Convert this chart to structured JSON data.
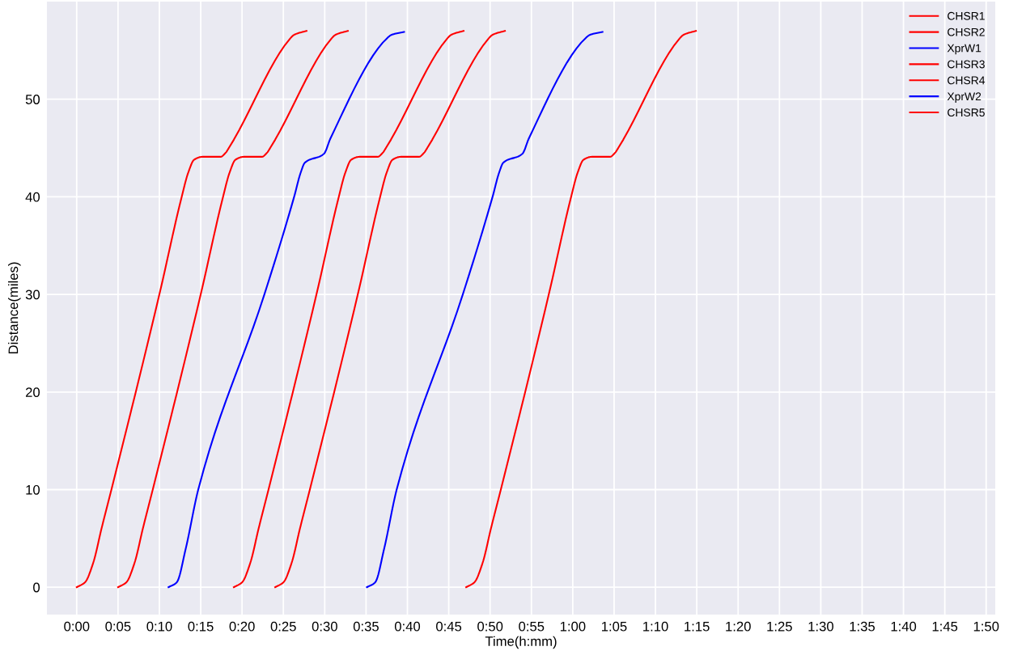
{
  "chart_data": {
    "type": "line",
    "xlabel": "Time(h:mm)",
    "ylabel": "Distance(miles)",
    "xlim": [
      -3.6,
      111.1
    ],
    "ylim": [
      -2.8,
      60
    ],
    "xticks": [
      {
        "value": 0,
        "label": "0:00"
      },
      {
        "value": 5,
        "label": "0:05"
      },
      {
        "value": 10,
        "label": "0:10"
      },
      {
        "value": 15,
        "label": "0:15"
      },
      {
        "value": 20,
        "label": "0:20"
      },
      {
        "value": 25,
        "label": "0:25"
      },
      {
        "value": 30,
        "label": "0:30"
      },
      {
        "value": 35,
        "label": "0:35"
      },
      {
        "value": 40,
        "label": "0:40"
      },
      {
        "value": 45,
        "label": "0:45"
      },
      {
        "value": 50,
        "label": "0:50"
      },
      {
        "value": 55,
        "label": "0:55"
      },
      {
        "value": 60,
        "label": "1:00"
      },
      {
        "value": 65,
        "label": "1:05"
      },
      {
        "value": 70,
        "label": "1:10"
      },
      {
        "value": 75,
        "label": "1:15"
      },
      {
        "value": 80,
        "label": "1:20"
      },
      {
        "value": 85,
        "label": "1:25"
      },
      {
        "value": 90,
        "label": "1:30"
      },
      {
        "value": 95,
        "label": "1:35"
      },
      {
        "value": 100,
        "label": "1:40"
      },
      {
        "value": 105,
        "label": "1:45"
      },
      {
        "value": 110,
        "label": "1:50"
      }
    ],
    "yticks": [
      0,
      10,
      20,
      30,
      40,
      50
    ],
    "grid": true,
    "legend": "top right",
    "marker": "none",
    "line_style": "solid",
    "series": [
      {
        "name": "CHSR1",
        "color": "#ff0000",
        "x": [
          0,
          1,
          2,
          3,
          4.2,
          10,
          12.7,
          13.5,
          14.2,
          15.2,
          17.4,
          18,
          18.4,
          25.8,
          26.3,
          27.8
        ],
        "values": [
          0,
          0.5,
          2.5,
          6,
          10,
          30,
          40,
          42.5,
          43.8,
          44.1,
          44.1,
          44.5,
          45,
          56.2,
          56.6,
          57
        ]
      },
      {
        "name": "CHSR2",
        "color": "#ff0000",
        "x": [
          5,
          6,
          7,
          8,
          9.2,
          15,
          17.7,
          18.5,
          19.2,
          20.2,
          22.4,
          23,
          23.4,
          30.8,
          31.3,
          32.8
        ],
        "values": [
          0,
          0.5,
          2.5,
          6,
          10,
          30,
          40,
          42.5,
          43.8,
          44.1,
          44.1,
          44.5,
          45,
          56.2,
          56.6,
          57
        ]
      },
      {
        "name": "XprW1",
        "color": "#0000ff",
        "x": [
          11.1,
          12.1,
          13.2,
          14.7,
          22.7,
          26.3,
          27.1,
          27.6,
          29.9,
          30.7,
          37.6,
          38.1,
          39.6
        ],
        "values": [
          0,
          0.5,
          4,
          10,
          30,
          40,
          42.5,
          43.5,
          44.4,
          46,
          56.3,
          56.6,
          56.9
        ]
      },
      {
        "name": "CHSR3",
        "color": "#ff0000",
        "x": [
          19,
          20,
          21,
          22,
          23.2,
          29,
          31.7,
          32.5,
          33.2,
          34.2,
          36.4,
          37,
          37.4,
          44.8,
          45.3,
          46.8
        ],
        "values": [
          0,
          0.5,
          2.5,
          6,
          10,
          30,
          40,
          42.5,
          43.8,
          44.1,
          44.1,
          44.5,
          45,
          56.2,
          56.6,
          57
        ]
      },
      {
        "name": "CHSR4",
        "color": "#ff0000",
        "x": [
          24,
          25,
          26,
          27,
          28.2,
          34,
          36.7,
          37.5,
          38.2,
          39.2,
          41.4,
          42,
          42.4,
          49.8,
          50.3,
          51.8
        ],
        "values": [
          0,
          0.5,
          2.5,
          6,
          10,
          30,
          40,
          42.5,
          43.8,
          44.1,
          44.1,
          44.5,
          45,
          56.2,
          56.6,
          57
        ]
      },
      {
        "name": "XprW2",
        "color": "#0000ff",
        "x": [
          35.1,
          36.1,
          37.2,
          38.7,
          46.7,
          50.3,
          51.1,
          51.6,
          53.9,
          54.7,
          61.6,
          62.1,
          63.6
        ],
        "values": [
          0,
          0.5,
          4,
          10,
          30,
          40,
          42.5,
          43.5,
          44.4,
          46,
          56.3,
          56.6,
          56.9
        ]
      },
      {
        "name": "CHSR5",
        "color": "#ff0000",
        "x": [
          47.1,
          48.1,
          49.1,
          50.1,
          51.3,
          57.1,
          59.8,
          60.6,
          61.3,
          62.3,
          64.5,
          65.1,
          65.5,
          72.9,
          73.4,
          74.9
        ],
        "values": [
          0,
          0.5,
          2.5,
          6,
          10,
          30,
          40,
          42.5,
          43.8,
          44.1,
          44.1,
          44.5,
          45,
          56.2,
          56.6,
          57
        ]
      }
    ]
  }
}
